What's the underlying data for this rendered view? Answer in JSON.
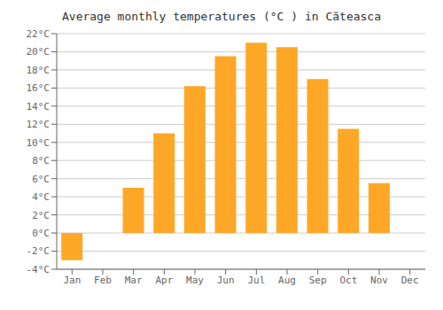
{
  "chart_data": {
    "type": "bar",
    "title": "Average monthly temperatures (°C ) in Căteasca",
    "categories": [
      "Jan",
      "Feb",
      "Mar",
      "Apr",
      "May",
      "Jun",
      "Jul",
      "Aug",
      "Sep",
      "Oct",
      "Nov",
      "Dec"
    ],
    "values": [
      -3.0,
      0.0,
      5.0,
      11.0,
      16.2,
      19.5,
      21.0,
      20.5,
      17.0,
      11.5,
      5.5,
      0.0
    ],
    "color": "#FFA726",
    "ylim": [
      -4,
      22
    ],
    "yticks": [
      {
        "value": -4,
        "label": "-4°C"
      },
      {
        "value": -2,
        "label": "-2°C"
      },
      {
        "value": 0,
        "label": "0°C"
      },
      {
        "value": 2,
        "label": "2°C"
      },
      {
        "value": 4,
        "label": "4°C"
      },
      {
        "value": 6,
        "label": "6°C"
      },
      {
        "value": 8,
        "label": "8°C"
      },
      {
        "value": 10,
        "label": "10°C"
      },
      {
        "value": 12,
        "label": "12°C"
      },
      {
        "value": 14,
        "label": "14°C"
      },
      {
        "value": 16,
        "label": "16°C"
      },
      {
        "value": 18,
        "label": "18°C"
      },
      {
        "value": 20,
        "label": "20°C"
      },
      {
        "value": 22,
        "label": "22°C"
      }
    ],
    "grid": true
  }
}
